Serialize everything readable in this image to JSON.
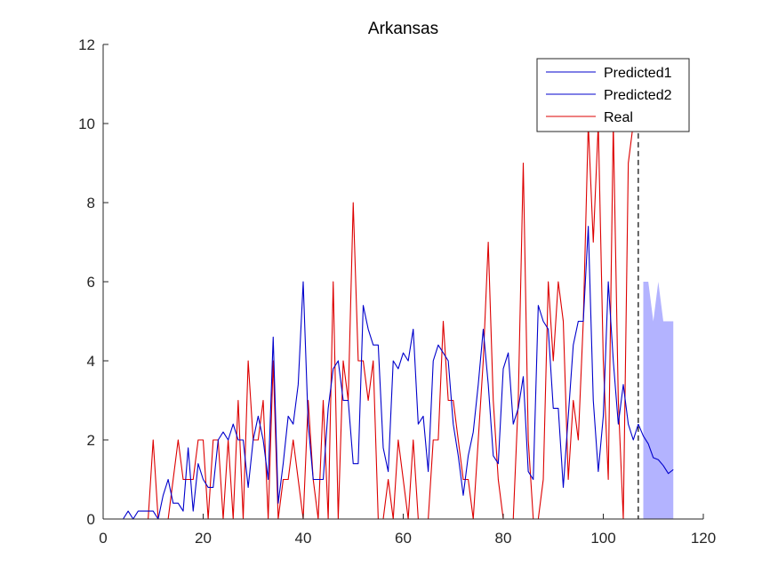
{
  "chart_data": {
    "type": "line",
    "title": "Arkansas",
    "xlabel": "",
    "ylabel": "",
    "xlim": [
      0,
      120
    ],
    "ylim": [
      0,
      12
    ],
    "xticks": [
      0,
      20,
      40,
      60,
      80,
      100,
      120
    ],
    "yticks": [
      0,
      2,
      4,
      6,
      8,
      10,
      12
    ],
    "grid": false,
    "legend_position": "top-right",
    "vertical_line_x": 107,
    "colors": {
      "predicted1": "#0000cc",
      "predicted2": "#0000cc",
      "real": "#dd0000",
      "band": "#b3b3ff",
      "axis": "#262626"
    },
    "series": [
      {
        "name": "Predicted1",
        "x": [
          0,
          1,
          2,
          3,
          4,
          5,
          6,
          7,
          8,
          9,
          10,
          11,
          12,
          13,
          14,
          15,
          16,
          17,
          18,
          19,
          20,
          21,
          22,
          23,
          24,
          25,
          26,
          27,
          28,
          29,
          30,
          31,
          32,
          33,
          34,
          35,
          36,
          37,
          38,
          39,
          40,
          41,
          42,
          43,
          44,
          45,
          46,
          47,
          48,
          49,
          50,
          51,
          52,
          53,
          54,
          55,
          56,
          57,
          58,
          59,
          60,
          61,
          62,
          63,
          64,
          65,
          66,
          67,
          68,
          69,
          70,
          71,
          72,
          73,
          74,
          75,
          76,
          77,
          78,
          79,
          80,
          81,
          82,
          83,
          84,
          85,
          86,
          87,
          88,
          89,
          90,
          91,
          92,
          93,
          94,
          95,
          96,
          97,
          98,
          99,
          100,
          101,
          102,
          103,
          104,
          105,
          106,
          107
        ],
        "values": [
          0,
          0,
          0,
          0,
          0,
          0.2,
          0,
          0.2,
          0.2,
          0.2,
          0.2,
          0,
          0.6,
          1.0,
          0.4,
          0.4,
          0.2,
          1.8,
          0.2,
          1.4,
          1.0,
          0.8,
          0.8,
          2.0,
          2.2,
          2.0,
          2.4,
          2.0,
          2.0,
          0.8,
          2.0,
          2.6,
          2.0,
          1.0,
          4.6,
          0.4,
          1.4,
          2.6,
          2.4,
          3.4,
          6.0,
          2.4,
          1.0,
          1.0,
          1.0,
          2.8,
          3.8,
          4.0,
          3.0,
          3.0,
          1.4,
          1.4,
          5.4,
          4.8,
          4.4,
          4.4,
          1.8,
          1.2,
          4.0,
          3.8,
          4.2,
          4.0,
          4.8,
          2.4,
          2.6,
          1.2,
          4.0,
          4.4,
          4.2,
          4.0,
          2.4,
          1.6,
          0.6,
          1.6,
          2.2,
          3.4,
          4.8,
          3.4,
          1.6,
          1.4,
          3.8,
          4.2,
          2.4,
          2.8,
          3.6,
          1.2,
          1.0,
          5.4,
          5.0,
          4.8,
          2.8,
          2.8,
          0.8,
          2.6,
          4.4,
          5.0,
          5.0,
          7.4,
          3.0,
          1.2,
          2.6,
          6.0,
          4.0,
          2.4,
          3.4,
          2.4,
          2.0,
          2.4
        ]
      },
      {
        "name": "Predicted2",
        "x": [
          107,
          108,
          109,
          110,
          111,
          112,
          113,
          114
        ],
        "values": [
          2.4,
          2.1,
          1.9,
          1.55,
          1.5,
          1.35,
          1.15,
          1.25
        ]
      },
      {
        "name": "Real",
        "x": [
          0,
          1,
          2,
          3,
          4,
          5,
          6,
          7,
          8,
          9,
          10,
          11,
          12,
          13,
          14,
          15,
          16,
          17,
          18,
          19,
          20,
          21,
          22,
          23,
          24,
          25,
          26,
          27,
          28,
          29,
          30,
          31,
          32,
          33,
          34,
          35,
          36,
          37,
          38,
          39,
          40,
          41,
          42,
          43,
          44,
          45,
          46,
          47,
          48,
          49,
          50,
          51,
          52,
          53,
          54,
          55,
          56,
          57,
          58,
          59,
          60,
          61,
          62,
          63,
          64,
          65,
          66,
          67,
          68,
          69,
          70,
          71,
          72,
          73,
          74,
          75,
          76,
          77,
          78,
          79,
          80,
          81,
          82,
          83,
          84,
          85,
          86,
          87,
          88,
          89,
          90,
          91,
          92,
          93,
          94,
          95,
          96,
          97,
          98,
          99,
          100,
          101,
          102,
          103,
          104,
          105,
          106
        ],
        "values": [
          0,
          0,
          0,
          0,
          0,
          0,
          0,
          0,
          0,
          0,
          2,
          0,
          0,
          0,
          1,
          2,
          1,
          1,
          1,
          2,
          2,
          0,
          2,
          2,
          0,
          2,
          0,
          3,
          0,
          4,
          2,
          2,
          3,
          0,
          4,
          0,
          1,
          1,
          2,
          1,
          0,
          3,
          1,
          0,
          3,
          0,
          6,
          0,
          4,
          3,
          8,
          4,
          4,
          3,
          4,
          0,
          0,
          1,
          0,
          2,
          1,
          0,
          2,
          0,
          0,
          0,
          2,
          2,
          5,
          3,
          3,
          2,
          1,
          1,
          0,
          2,
          4,
          7,
          3,
          1,
          0,
          0,
          0,
          3,
          9,
          2,
          0,
          0,
          1,
          6,
          4,
          6,
          5,
          1,
          3,
          2,
          5,
          10,
          7,
          10,
          4,
          1,
          10,
          3,
          0,
          9,
          10
        ]
      }
    ],
    "band": {
      "x": [
        108,
        109,
        110,
        111,
        112,
        113,
        114
      ],
      "upper": [
        6,
        6,
        5,
        6,
        5,
        5,
        5
      ],
      "lower": [
        0,
        0,
        0,
        0,
        0,
        0,
        0
      ]
    }
  }
}
